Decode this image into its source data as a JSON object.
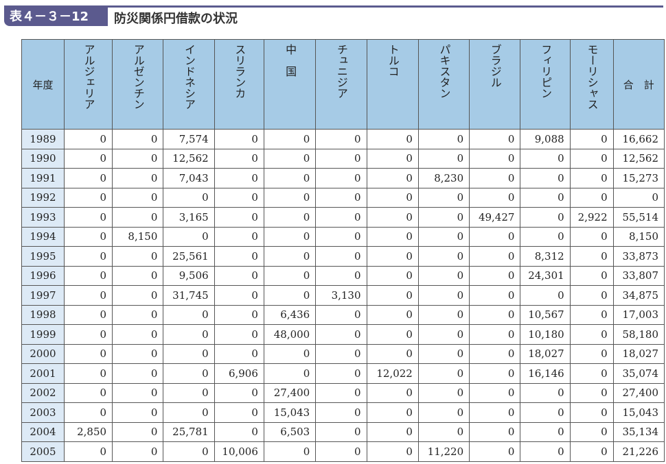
{
  "title": {
    "badge": "表４－３－12",
    "text": "防災関係円借款の状況"
  },
  "table": {
    "year_header": "年度",
    "countries": [
      "アルジェリア",
      "アルゼンチン",
      "インドネシア",
      "スリランカ",
      "中　国",
      "チュニジア",
      "トルコ",
      "パキスタン",
      "ブラジル",
      "フィリピン",
      "モーリシャス"
    ],
    "total_header": "合　計",
    "rows": [
      {
        "year": "1989",
        "values": [
          "0",
          "0",
          "7,574",
          "0",
          "0",
          "0",
          "0",
          "0",
          "0",
          "9,088",
          "0"
        ],
        "total": "16,662"
      },
      {
        "year": "1990",
        "values": [
          "0",
          "0",
          "12,562",
          "0",
          "0",
          "0",
          "0",
          "0",
          "0",
          "0",
          "0"
        ],
        "total": "12,562"
      },
      {
        "year": "1991",
        "values": [
          "0",
          "0",
          "7,043",
          "0",
          "0",
          "0",
          "0",
          "8,230",
          "0",
          "0",
          "0"
        ],
        "total": "15,273"
      },
      {
        "year": "1992",
        "values": [
          "0",
          "0",
          "0",
          "0",
          "0",
          "0",
          "0",
          "0",
          "0",
          "0",
          "0"
        ],
        "total": "0"
      },
      {
        "year": "1993",
        "values": [
          "0",
          "0",
          "3,165",
          "0",
          "0",
          "0",
          "0",
          "0",
          "49,427",
          "0",
          "2,922"
        ],
        "total": "55,514"
      },
      {
        "year": "1994",
        "values": [
          "0",
          "8,150",
          "0",
          "0",
          "0",
          "0",
          "0",
          "0",
          "0",
          "0",
          "0"
        ],
        "total": "8,150"
      },
      {
        "year": "1995",
        "values": [
          "0",
          "0",
          "25,561",
          "0",
          "0",
          "0",
          "0",
          "0",
          "0",
          "8,312",
          "0"
        ],
        "total": "33,873"
      },
      {
        "year": "1996",
        "values": [
          "0",
          "0",
          "9,506",
          "0",
          "0",
          "0",
          "0",
          "0",
          "0",
          "24,301",
          "0"
        ],
        "total": "33,807"
      },
      {
        "year": "1997",
        "values": [
          "0",
          "0",
          "31,745",
          "0",
          "0",
          "3,130",
          "0",
          "0",
          "0",
          "0",
          "0"
        ],
        "total": "34,875"
      },
      {
        "year": "1998",
        "values": [
          "0",
          "0",
          "0",
          "0",
          "6,436",
          "0",
          "0",
          "0",
          "0",
          "10,567",
          "0"
        ],
        "total": "17,003"
      },
      {
        "year": "1999",
        "values": [
          "0",
          "0",
          "0",
          "0",
          "48,000",
          "0",
          "0",
          "0",
          "0",
          "10,180",
          "0"
        ],
        "total": "58,180"
      },
      {
        "year": "2000",
        "values": [
          "0",
          "0",
          "0",
          "0",
          "0",
          "0",
          "0",
          "0",
          "0",
          "18,027",
          "0"
        ],
        "total": "18,027"
      },
      {
        "year": "2001",
        "values": [
          "0",
          "0",
          "0",
          "6,906",
          "0",
          "0",
          "12,022",
          "0",
          "0",
          "16,146",
          "0"
        ],
        "total": "35,074"
      },
      {
        "year": "2002",
        "values": [
          "0",
          "0",
          "0",
          "0",
          "27,400",
          "0",
          "0",
          "0",
          "0",
          "0",
          "0"
        ],
        "total": "27,400"
      },
      {
        "year": "2003",
        "values": [
          "0",
          "0",
          "0",
          "0",
          "15,043",
          "0",
          "0",
          "0",
          "0",
          "0",
          "0"
        ],
        "total": "15,043"
      },
      {
        "year": "2004",
        "values": [
          "2,850",
          "0",
          "25,781",
          "0",
          "6,503",
          "0",
          "0",
          "0",
          "0",
          "0",
          "0"
        ],
        "total": "35,134"
      },
      {
        "year": "2005",
        "values": [
          "0",
          "0",
          "0",
          "10,006",
          "0",
          "0",
          "0",
          "11,220",
          "0",
          "0",
          "0"
        ],
        "total": "21,226"
      }
    ]
  }
}
